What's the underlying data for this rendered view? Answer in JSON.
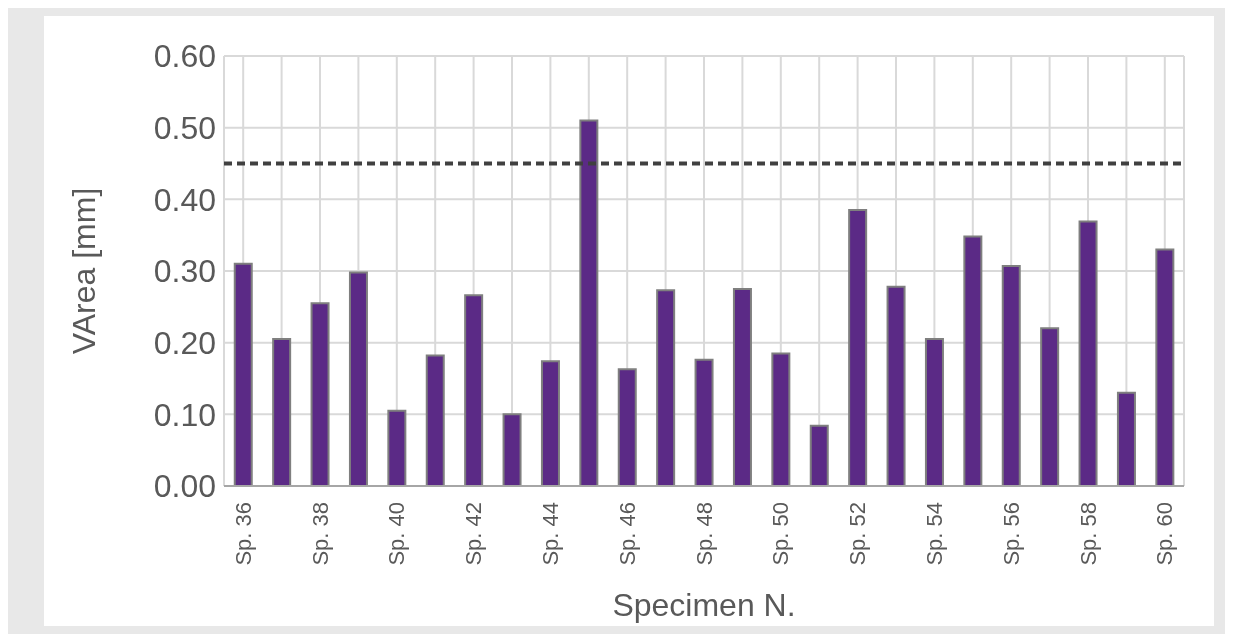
{
  "chart_data": {
    "type": "bar",
    "xlabel": "Specimen N.",
    "ylabel": "VArea [mm]",
    "categories": [
      "Sp. 36",
      null,
      "Sp. 38",
      null,
      "Sp. 40",
      null,
      "Sp. 42",
      null,
      "Sp. 44",
      null,
      "Sp. 46",
      null,
      "Sp. 48",
      null,
      "Sp. 50",
      null,
      "Sp. 52",
      null,
      "Sp. 54",
      null,
      "Sp. 56",
      null,
      "Sp. 58",
      null,
      "Sp. 60"
    ],
    "values": [
      0.31,
      0.205,
      0.255,
      0.298,
      0.105,
      0.182,
      0.266,
      0.1,
      0.174,
      0.51,
      0.163,
      0.273,
      0.176,
      0.275,
      0.185,
      0.084,
      0.385,
      0.278,
      0.205,
      0.348,
      0.307,
      0.22,
      0.369,
      0.13,
      0.33
    ],
    "color": "#5b2a86",
    "ylim": [
      0,
      0.6
    ],
    "yticks": [
      {
        "value": 0,
        "label": "0.00"
      },
      {
        "value": 0.1,
        "label": "0.10"
      },
      {
        "value": 0.2,
        "label": "0.20"
      },
      {
        "value": 0.3,
        "label": "0.30"
      },
      {
        "value": 0.4,
        "label": "0.40"
      },
      {
        "value": 0.5,
        "label": "0.50"
      },
      {
        "value": 0.6,
        "label": "0.60"
      }
    ],
    "grid": true,
    "ref_lines": [
      {
        "axis": "y",
        "value": 0.45,
        "color": "#404040",
        "line_style": "dashed"
      }
    ]
  }
}
